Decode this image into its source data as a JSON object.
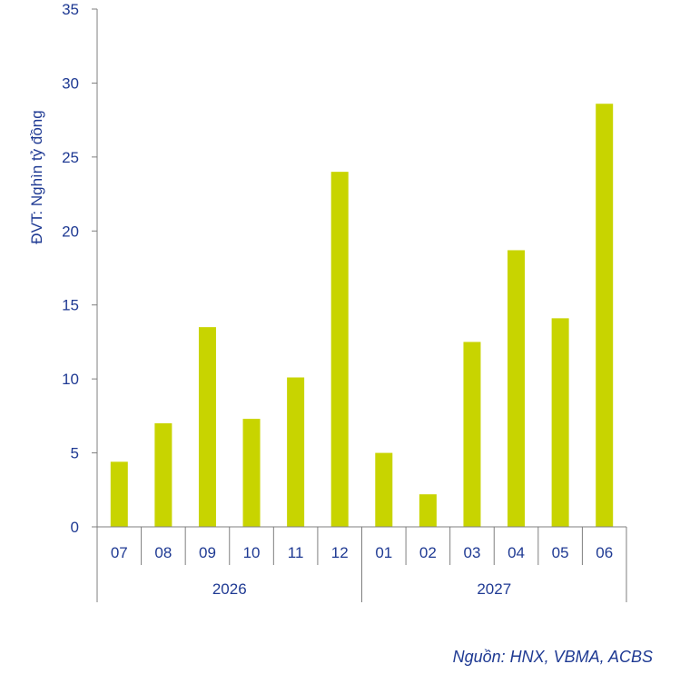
{
  "chart_data": {
    "type": "bar",
    "categories": [
      "07",
      "08",
      "09",
      "10",
      "11",
      "12",
      "01",
      "02",
      "03",
      "04",
      "05",
      "06"
    ],
    "groups": [
      {
        "label": "2026",
        "categories": [
          "07",
          "08",
          "09",
          "10",
          "11",
          "12"
        ]
      },
      {
        "label": "2027",
        "categories": [
          "01",
          "02",
          "03",
          "04",
          "05",
          "06"
        ]
      }
    ],
    "values": [
      4.4,
      7.0,
      13.5,
      7.3,
      10.1,
      24.0,
      5.0,
      2.2,
      12.5,
      18.7,
      14.1,
      28.6
    ],
    "ylabel": "ĐVT: Nghìn tỷ đồng",
    "ylim": [
      0,
      35
    ],
    "yticks": [
      0,
      5,
      10,
      15,
      20,
      25,
      30,
      35
    ],
    "grid": false,
    "colors": {
      "bar": "#c8d400",
      "text": "#1f3a93",
      "axis": "#7f7f7f"
    }
  },
  "source": "Nguồn: HNX, VBMA, ACBS"
}
